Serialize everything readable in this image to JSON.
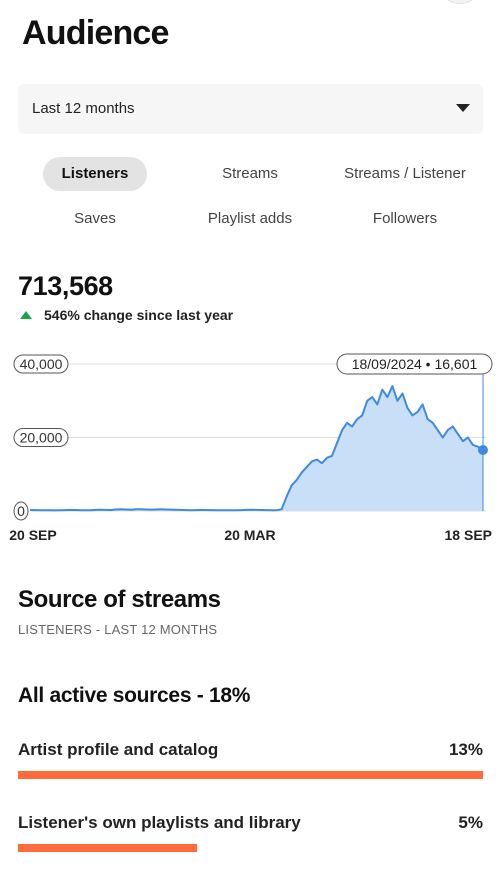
{
  "header": {
    "title": "Audience"
  },
  "range_select": {
    "value": "Last 12 months"
  },
  "metric_tabs": [
    {
      "label": "Listeners",
      "active": true
    },
    {
      "label": "Streams",
      "active": false
    },
    {
      "label": "Streams / Listener",
      "active": false
    },
    {
      "label": "Saves",
      "active": false
    },
    {
      "label": "Playlist adds",
      "active": false
    },
    {
      "label": "Followers",
      "active": false
    }
  ],
  "summary": {
    "total": "713,568",
    "change": "546% change since last year"
  },
  "chart_data": {
    "type": "area",
    "y_tick_labels": [
      "40,000",
      "20,000",
      "0"
    ],
    "x_tick_labels": [
      "20 SEP",
      "20 MAR",
      "18 SEP"
    ],
    "ylim": [
      0,
      40000
    ],
    "tooltip": "18/09/2024 • 16,601",
    "series": [
      {
        "values": [
          300,
          250,
          200,
          220,
          180,
          150,
          200,
          250,
          300,
          260,
          200,
          180,
          220,
          300,
          350,
          300,
          250,
          400,
          450,
          400,
          350,
          500,
          450,
          400,
          380,
          420,
          450,
          400,
          380,
          350,
          300,
          250,
          220,
          250,
          300,
          280,
          250,
          220,
          200,
          180,
          200,
          220,
          250,
          300,
          350,
          300,
          280,
          250,
          220,
          200,
          500,
          4000,
          7000,
          8500,
          10500,
          12000,
          13500,
          14000,
          13000,
          14500,
          15000,
          18500,
          22000,
          24000,
          23000,
          25000,
          26000,
          30000,
          31000,
          29000,
          33000,
          31000,
          34000,
          30000,
          32000,
          28000,
          26000,
          27000,
          29000,
          25000,
          24000,
          22000,
          20000,
          22000,
          23000,
          21000,
          19000,
          20000,
          18000,
          17500,
          16601
        ]
      }
    ]
  },
  "source_of_streams": {
    "title": "Source of streams",
    "subtitle": "LISTENERS - LAST 12 MONTHS",
    "group_title": "All active sources - 18%",
    "items": [
      {
        "label": "Artist profile and catalog",
        "percent": "13%",
        "share": 1.0
      },
      {
        "label": "Listener's own playlists and library",
        "percent": "5%",
        "share": 0.385
      }
    ]
  },
  "colors": {
    "accent_bar": "#ff6b3b",
    "chart_line": "#3d8be0",
    "chart_fill": "#c9dff7",
    "up_arrow": "#1aa34a"
  }
}
